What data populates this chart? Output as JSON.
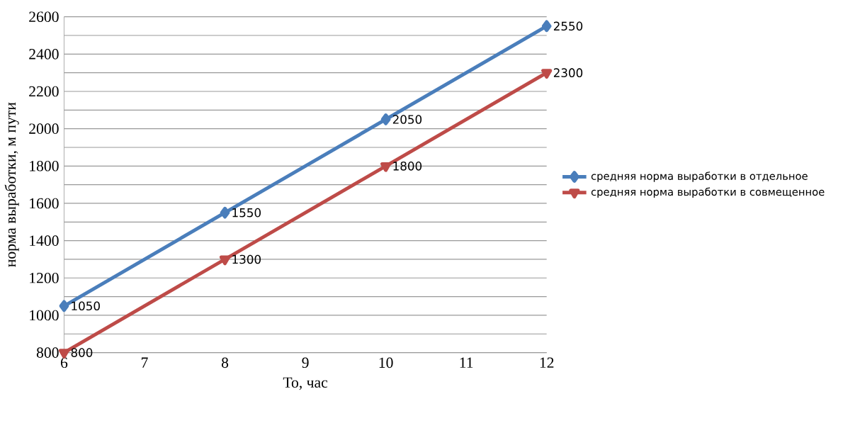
{
  "chart_data": {
    "type": "line",
    "xlabel": "То, час",
    "ylabel": "норма выработки, м пути",
    "x": [
      6,
      8,
      10,
      12
    ],
    "series": [
      {
        "name": "средняя норма выработки в отдельное",
        "color": "#4a7ebb",
        "marker": "diamond",
        "values": [
          1050,
          1550,
          2050,
          2550
        ]
      },
      {
        "name": "средняя норма выработки в совмещенное",
        "color": "#be4b48",
        "marker": "triangle",
        "values": [
          800,
          1300,
          1800,
          2300
        ]
      }
    ],
    "xlim": [
      6,
      12
    ],
    "xticks": [
      6,
      7,
      8,
      9,
      10,
      11,
      12
    ],
    "ylim": [
      800,
      2600
    ],
    "yticks": [
      800,
      {
        "value": 900,
        "label": null
      },
      1000,
      {
        "value": 1100,
        "label": null
      },
      1200,
      {
        "value": 1300,
        "label": null
      },
      1400,
      {
        "value": 1500,
        "label": null
      },
      1600,
      {
        "value": 1700,
        "label": null
      },
      1800,
      {
        "value": 1900,
        "label": null
      },
      2000,
      {
        "value": 2100,
        "label": null
      },
      2200,
      {
        "value": 2300,
        "label": null
      },
      2400,
      {
        "value": 2500,
        "label": null
      },
      2600
    ],
    "grid": "y",
    "legend": "right",
    "data_labels": true
  }
}
